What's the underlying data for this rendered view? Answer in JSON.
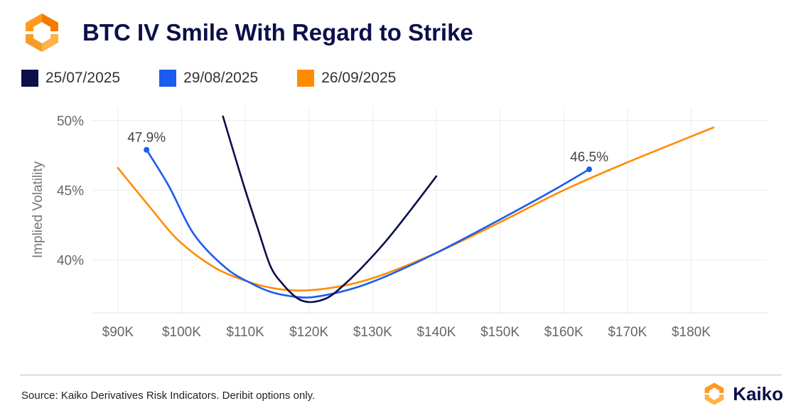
{
  "header": {
    "title": "BTC IV Smile With Regard to Strike"
  },
  "legend": [
    {
      "label": "25/07/2025",
      "color": "#0c0f4a"
    },
    {
      "label": "29/08/2025",
      "color": "#1a5cf0"
    },
    {
      "label": "26/09/2025",
      "color": "#ff8c00"
    }
  ],
  "chart_data": {
    "type": "line",
    "title": "BTC IV Smile With Regard to Strike",
    "xlabel": "",
    "ylabel": "Implied Volatility",
    "xlim": [
      86,
      192
    ],
    "ylim": [
      36.2,
      51
    ],
    "x_ticks": [
      90,
      100,
      110,
      120,
      130,
      140,
      150,
      160,
      170,
      180
    ],
    "x_tick_labels": [
      "$90K",
      "$100K",
      "$110K",
      "$120K",
      "$130K",
      "$140K",
      "$150K",
      "$160K",
      "$170K",
      "$180K"
    ],
    "y_ticks": [
      40,
      45,
      50
    ],
    "y_tick_labels": [
      "40%",
      "45%",
      "50%"
    ],
    "grid": true,
    "series": [
      {
        "name": "25/07/2025",
        "color": "#0c0f4a",
        "x": [
          106.5,
          108,
          110,
          112,
          114,
          116,
          118,
          119.5,
          121,
          123,
          125,
          128,
          132,
          136,
          140
        ],
        "y": [
          50.3,
          48.0,
          45.0,
          42.2,
          39.5,
          38.2,
          37.3,
          37.0,
          37.0,
          37.3,
          38.0,
          39.3,
          41.3,
          43.6,
          46.0
        ]
      },
      {
        "name": "29/08/2025",
        "color": "#1a5cf0",
        "x": [
          94.5,
          98,
          102,
          107,
          111,
          114,
          117,
          120,
          124,
          128,
          133,
          140,
          150,
          158,
          164
        ],
        "y": [
          47.9,
          45.3,
          41.8,
          39.4,
          38.3,
          37.7,
          37.4,
          37.3,
          37.6,
          38.1,
          39.0,
          40.5,
          42.9,
          44.9,
          46.5
        ]
      },
      {
        "name": "26/09/2025",
        "color": "#ff8c00",
        "x": [
          90,
          95,
          99.5,
          105,
          110,
          114,
          118,
          122,
          127,
          132,
          140,
          150,
          160,
          170,
          183.5
        ],
        "y": [
          46.6,
          43.8,
          41.4,
          39.5,
          38.5,
          38.0,
          37.8,
          37.9,
          38.3,
          39.0,
          40.5,
          42.7,
          45.0,
          47.0,
          49.5
        ]
      }
    ],
    "annotations": [
      {
        "text": "47.9%",
        "x": 94.5,
        "y": 47.9,
        "series": "29/08/2025"
      },
      {
        "text": "46.5%",
        "x": 164,
        "y": 46.5,
        "series": "29/08/2025"
      }
    ]
  },
  "footer": {
    "source": "Source: Kaiko Derivatives Risk Indicators. Deribit options only.",
    "brand": "Kaiko"
  }
}
